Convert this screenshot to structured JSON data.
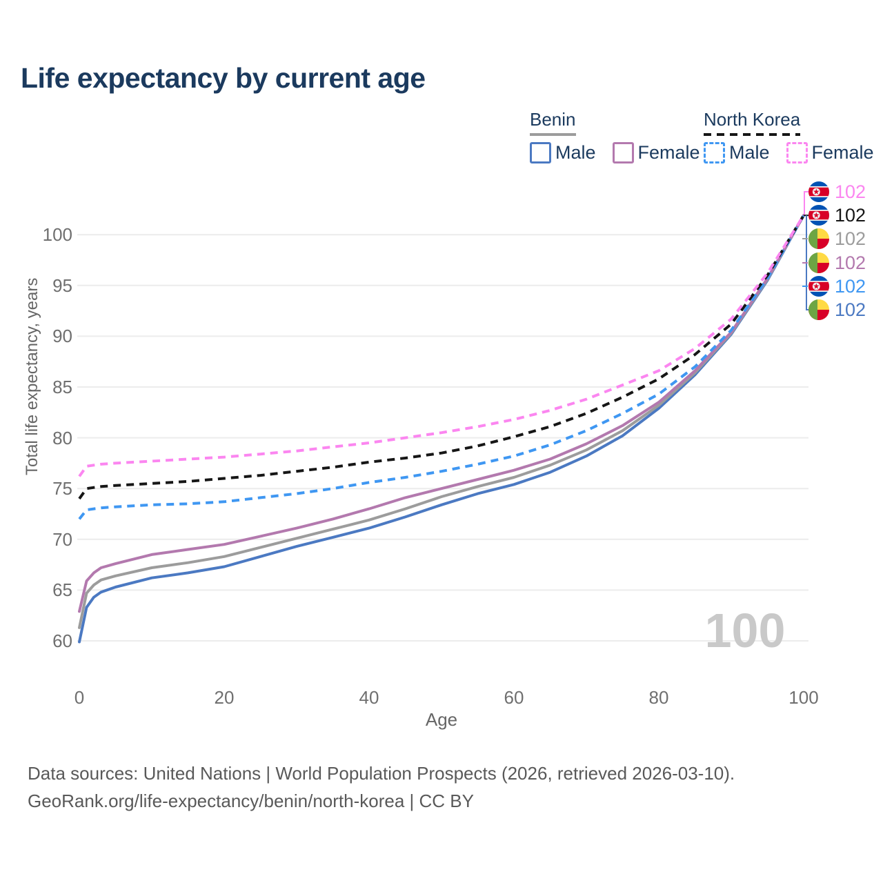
{
  "title": "Life expectancy by current age",
  "colors": {
    "title_text": "#1b3a5e",
    "axis_text": "#6f6f6f",
    "footer_text": "#595959",
    "watermark": "#c9c9c9",
    "gridline": "#ececec"
  },
  "legend": {
    "groups": [
      {
        "label": "Benin",
        "underline_color": "#9c9c9c",
        "underline_style": "solid",
        "items": [
          {
            "label": "Male",
            "color": "#4b79c2",
            "dashed": false
          },
          {
            "label": "Female",
            "color": "#b379ae",
            "dashed": false
          }
        ]
      },
      {
        "label": "North Korea",
        "underline_color": "#161616",
        "underline_style": "dashed",
        "items": [
          {
            "label": "Male",
            "color": "#3f97f2",
            "dashed": true
          },
          {
            "label": "Female",
            "color": "#fb86f0",
            "dashed": true
          }
        ]
      }
    ]
  },
  "end_labels": [
    {
      "flag": "north-korea",
      "series": "North Korea Female",
      "value": "102",
      "color": "#fb86f0"
    },
    {
      "flag": "north-korea",
      "series": "North Korea Total",
      "value": "102",
      "color": "#161616"
    },
    {
      "flag": "benin",
      "series": "Benin Total",
      "value": "102",
      "color": "#9c9c9c"
    },
    {
      "flag": "benin",
      "series": "Benin Female",
      "value": "102",
      "color": "#b379ae"
    },
    {
      "flag": "north-korea",
      "series": "North Korea Male",
      "value": "102",
      "color": "#3f97f2"
    },
    {
      "flag": "benin",
      "series": "Benin Male",
      "value": "102",
      "color": "#4b79c2"
    }
  ],
  "watermark": "100",
  "footer": {
    "line1": "Data sources: United Nations | World Population Prospects (2026, retrieved 2026-03-10).",
    "line2": "GeoRank.org/life-expectancy/benin/north-korea | CC BY"
  },
  "chart_data": {
    "type": "line",
    "title": "Life expectancy by current age",
    "xlabel": "Age",
    "ylabel": "Total life expectancy, years",
    "xlim": [
      0,
      100
    ],
    "ylim": [
      58.5,
      103.5
    ],
    "xticks": [
      0,
      20,
      40,
      60,
      80,
      100
    ],
    "yticks": [
      60,
      65,
      70,
      75,
      80,
      85,
      90,
      95,
      100
    ],
    "grid": "horizontal",
    "legend_position": "top-right",
    "x": [
      0,
      1,
      2,
      3,
      5,
      10,
      15,
      20,
      25,
      30,
      35,
      40,
      45,
      50,
      55,
      60,
      65,
      70,
      75,
      80,
      85,
      90,
      95,
      100
    ],
    "series": [
      {
        "name": "Benin Male",
        "id": "benin-male",
        "color": "#4b79c2",
        "dash": false,
        "values": [
          59.9,
          63.3,
          64.3,
          64.8,
          65.3,
          66.2,
          66.7,
          67.3,
          68.3,
          69.3,
          70.2,
          71.1,
          72.2,
          73.4,
          74.5,
          75.4,
          76.6,
          78.2,
          80.2,
          82.9,
          86.2,
          90.2,
          95.5,
          101.9
        ]
      },
      {
        "name": "Benin Total",
        "id": "benin-total",
        "color": "#9c9c9c",
        "dash": false,
        "values": [
          61.3,
          64.7,
          65.5,
          66.0,
          66.4,
          67.2,
          67.7,
          68.3,
          69.2,
          70.1,
          71.0,
          71.9,
          73.0,
          74.2,
          75.2,
          76.1,
          77.3,
          78.8,
          80.7,
          83.2,
          86.4,
          90.3,
          95.6,
          101.9
        ]
      },
      {
        "name": "Benin Female",
        "id": "benin-female",
        "color": "#b379ae",
        "dash": false,
        "values": [
          62.9,
          65.9,
          66.7,
          67.2,
          67.6,
          68.5,
          69.0,
          69.5,
          70.3,
          71.1,
          72.0,
          73.0,
          74.1,
          75.0,
          75.9,
          76.8,
          77.9,
          79.4,
          81.2,
          83.5,
          86.6,
          90.4,
          95.7,
          101.9
        ]
      },
      {
        "name": "North Korea Male",
        "id": "north-korea-male",
        "color": "#3f97f2",
        "dash": true,
        "values": [
          72.0,
          72.9,
          73.0,
          73.1,
          73.2,
          73.4,
          73.5,
          73.7,
          74.1,
          74.5,
          75.0,
          75.6,
          76.1,
          76.7,
          77.4,
          78.2,
          79.3,
          80.7,
          82.4,
          84.3,
          87.0,
          90.6,
          95.7,
          101.9
        ]
      },
      {
        "name": "North Korea Total",
        "id": "north-korea-total",
        "color": "#161616",
        "dash": true,
        "values": [
          74.0,
          75.0,
          75.1,
          75.2,
          75.3,
          75.5,
          75.7,
          76.0,
          76.3,
          76.7,
          77.1,
          77.6,
          78.0,
          78.5,
          79.2,
          80.1,
          81.1,
          82.4,
          84.0,
          85.8,
          88.2,
          91.2,
          96.0,
          101.9
        ]
      },
      {
        "name": "North Korea Female",
        "id": "north-korea-female",
        "color": "#fb86f0",
        "dash": true,
        "values": [
          76.2,
          77.2,
          77.3,
          77.4,
          77.5,
          77.7,
          77.9,
          78.1,
          78.4,
          78.7,
          79.1,
          79.5,
          80.0,
          80.5,
          81.1,
          81.8,
          82.7,
          83.8,
          85.2,
          86.6,
          88.8,
          91.7,
          96.2,
          101.9
        ]
      }
    ]
  }
}
